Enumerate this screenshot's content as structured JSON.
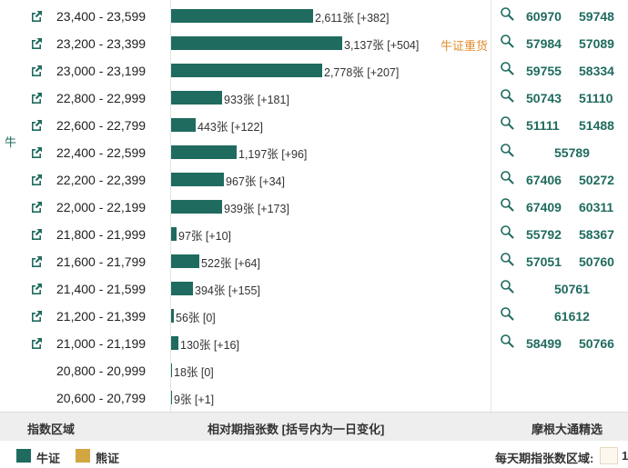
{
  "colors": {
    "bull": "#1f6b5f",
    "bear": "#d4a642",
    "tag": "#e08c2c"
  },
  "side_label": "牛",
  "rows": [
    {
      "range": "23,400 - 23,599",
      "count": 2611,
      "count_label": "2,611张 [+382]",
      "link": true,
      "tag": "",
      "codes": [
        "60970",
        "59748"
      ]
    },
    {
      "range": "23,200 - 23,399",
      "count": 3137,
      "count_label": "3,137张 [+504]",
      "link": true,
      "tag": "牛证重货",
      "codes": [
        "57984",
        "57089"
      ]
    },
    {
      "range": "23,000 - 23,199",
      "count": 2778,
      "count_label": "2,778张 [+207]",
      "link": true,
      "tag": "",
      "codes": [
        "59755",
        "58334"
      ]
    },
    {
      "range": "22,800 - 22,999",
      "count": 933,
      "count_label": "933张 [+181]",
      "link": true,
      "tag": "",
      "codes": [
        "50743",
        "51110"
      ]
    },
    {
      "range": "22,600 - 22,799",
      "count": 443,
      "count_label": "443张 [+122]",
      "link": true,
      "tag": "",
      "codes": [
        "51111",
        "51488"
      ]
    },
    {
      "range": "22,400 - 22,599",
      "count": 1197,
      "count_label": "1,197张 [+96]",
      "link": true,
      "tag": "",
      "codes": [
        "55789"
      ]
    },
    {
      "range": "22,200 - 22,399",
      "count": 967,
      "count_label": "967张 [+34]",
      "link": true,
      "tag": "",
      "codes": [
        "67406",
        "50272"
      ]
    },
    {
      "range": "22,000 - 22,199",
      "count": 939,
      "count_label": "939张 [+173]",
      "link": true,
      "tag": "",
      "codes": [
        "67409",
        "60311"
      ]
    },
    {
      "range": "21,800 - 21,999",
      "count": 97,
      "count_label": "97张 [+10]",
      "link": true,
      "tag": "",
      "codes": [
        "55792",
        "58367"
      ]
    },
    {
      "range": "21,600 - 21,799",
      "count": 522,
      "count_label": "522张 [+64]",
      "link": true,
      "tag": "",
      "codes": [
        "57051",
        "50760"
      ]
    },
    {
      "range": "21,400 - 21,599",
      "count": 394,
      "count_label": "394张 [+155]",
      "link": true,
      "tag": "",
      "codes": [
        "50761"
      ]
    },
    {
      "range": "21,200 - 21,399",
      "count": 56,
      "count_label": "56张 [0]",
      "link": true,
      "tag": "",
      "codes": [
        "61612"
      ]
    },
    {
      "range": "21,000 - 21,199",
      "count": 130,
      "count_label": "130张 [+16]",
      "link": true,
      "tag": "",
      "codes": [
        "58499",
        "50766"
      ]
    },
    {
      "range": "20,800 - 20,999",
      "count": 18,
      "count_label": "18张 [0]",
      "link": false,
      "tag": "",
      "codes": []
    },
    {
      "range": "20,600 - 20,799",
      "count": 9,
      "count_label": "9张 [+1]",
      "link": false,
      "tag": "",
      "codes": []
    }
  ],
  "footer": {
    "col1": "指数区域",
    "col2": "相对期指张数 [括号内为一日变化]",
    "col3": "摩根大通精选"
  },
  "legend": {
    "bull": "牛证",
    "bear": "熊证",
    "daily_label": "每天期指张数区域:",
    "daily_value": "1"
  }
}
